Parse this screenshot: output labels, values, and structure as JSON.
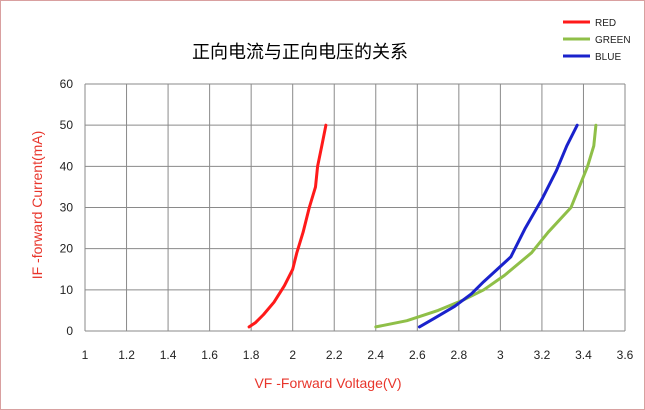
{
  "chart_data": {
    "type": "line",
    "title": "正向电流与正向电压的关系",
    "xlabel": "VF -Forward  Voltage(V)",
    "ylabel": "IF -forward  Current(mA)",
    "xlim": [
      1,
      3.6
    ],
    "ylim": [
      0,
      60
    ],
    "xticks": [
      "1",
      "1.2",
      "1.4",
      "1.6",
      "1.8",
      "2",
      "2.2",
      "2.4",
      "2.6",
      "2.8",
      "3",
      "3.2",
      "3.4",
      "3.6"
    ],
    "yticks": [
      "0",
      "10",
      "20",
      "30",
      "40",
      "50",
      "60"
    ],
    "grid": true,
    "legend_position": "top-right",
    "series": [
      {
        "name": "RED",
        "color": "#ff1a1a",
        "x": [
          1.79,
          1.82,
          1.86,
          1.91,
          1.96,
          2.0,
          2.02,
          2.05,
          2.08,
          2.11,
          2.12,
          2.14,
          2.16
        ],
        "y": [
          1,
          2,
          4,
          7,
          11,
          15,
          19,
          24,
          30,
          35,
          40,
          45,
          50
        ]
      },
      {
        "name": "GREEN",
        "color": "#8fbf48",
        "x": [
          2.4,
          2.55,
          2.7,
          2.82,
          2.92,
          3.02,
          3.15,
          3.23,
          3.34,
          3.38,
          3.42,
          3.45,
          3.46
        ],
        "y": [
          1,
          2.5,
          5,
          7.5,
          10,
          13.5,
          19,
          24,
          30,
          35,
          40,
          45,
          50
        ]
      },
      {
        "name": "BLUE",
        "color": "#1a22cc",
        "x": [
          2.61,
          2.68,
          2.78,
          2.86,
          2.92,
          3.05,
          3.12,
          3.2,
          3.27,
          3.32,
          3.37
        ],
        "y": [
          1,
          3,
          6,
          9,
          12,
          18,
          25,
          32,
          39,
          45,
          50
        ]
      }
    ]
  }
}
